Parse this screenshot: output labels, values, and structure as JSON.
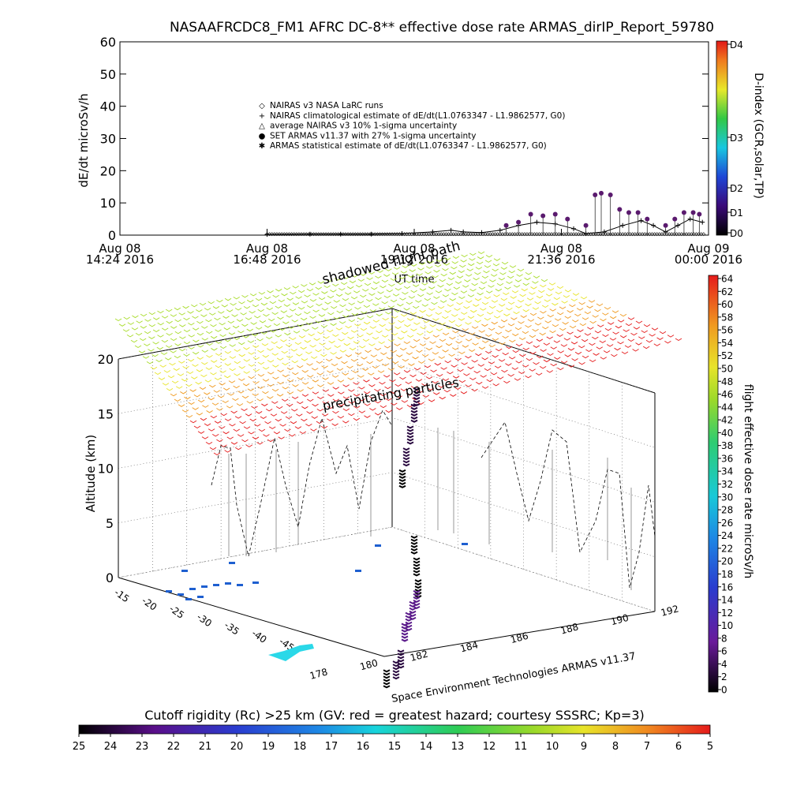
{
  "chart_data": [
    {
      "type": "line",
      "title": "NASAAFRCDC8_FM1 AFRC DC-8** effective dose rate ARMAS_dirIP_Report_59780",
      "ylabel": "dE/dt microSv/h",
      "xlabel": "UT time",
      "ylim": [
        0,
        60
      ],
      "yticks": [
        "0",
        "10",
        "20",
        "30",
        "40",
        "50",
        "60"
      ],
      "xticks": [
        {
          "date": "Aug 08",
          "time": "14:24 2016"
        },
        {
          "date": "Aug 08",
          "time": "16:48 2016"
        },
        {
          "date": "Aug 08",
          "time": "19:12 2016"
        },
        {
          "date": "Aug 08",
          "time": "21:36 2016"
        },
        {
          "date": "Aug 09",
          "time": "00:00 2016"
        }
      ],
      "legend": [
        {
          "symbol": "◇",
          "label": "NAIRAS v3 NASA LaRC runs"
        },
        {
          "symbol": "+",
          "label": "NAIRAS climatological estimate of dE/dt(L1.0763347 - L1.9862577, G0)"
        },
        {
          "symbol": "△",
          "label": "average NAIRAS v3 10% 1-sigma uncertainty"
        },
        {
          "symbol": "●",
          "label": "SET ARMAS v11.37 with 27% 1-sigma uncertainty"
        },
        {
          "symbol": "✱",
          "label": "ARMAS statistical estimate of dE/dt(L1.0763347 - L1.9862577, G0)"
        }
      ],
      "legend_position": "center",
      "series": [
        {
          "name": "SET ARMAS v11.37 with 27% 1-sigma uncertainty",
          "color": "#5a1a6e",
          "x_hours": [
            20.7,
            20.9,
            21.1,
            21.3,
            21.5,
            21.7,
            22.0,
            22.15,
            22.25,
            22.4,
            22.55,
            22.7,
            22.85,
            23.0,
            23.3,
            23.45,
            23.6,
            23.75,
            23.85
          ],
          "values": [
            3,
            4,
            6.5,
            6,
            6.5,
            5,
            3,
            12.5,
            13,
            12.5,
            8,
            7,
            7,
            5,
            3,
            5,
            7,
            7,
            6.5
          ]
        },
        {
          "name": "NAIRAS climatological estimate of dE/dt(L1.0763347 - L1.9862577, G0)",
          "color": "#000000",
          "x_hours": [
            16.8,
            17.5,
            18.0,
            18.5,
            19.0,
            19.5,
            19.8,
            20.0,
            20.3,
            20.6,
            20.9,
            21.2,
            21.5,
            21.8,
            22.0,
            22.3,
            22.6,
            22.9,
            23.1,
            23.3,
            23.5,
            23.7,
            23.9
          ],
          "values": [
            0.2,
            0.3,
            0.3,
            0.3,
            0.5,
            1,
            1.5,
            1,
            0.8,
            1.5,
            3,
            4,
            3.5,
            2,
            0.5,
            1,
            3,
            4.5,
            3,
            1,
            3,
            5,
            4
          ]
        }
      ],
      "colorbar": {
        "label": "D-index (GCR,solar,TP)",
        "ticks": [
          "D0",
          "D1",
          "D2",
          "D3",
          "D4"
        ]
      }
    },
    {
      "type": "scatter",
      "subtitle": "UT time",
      "zlabel": "Altitude (km)",
      "zlim": [
        0,
        20
      ],
      "zticks": [
        "0",
        "5",
        "10",
        "15",
        "20"
      ],
      "lat_ticks": [
        "-15",
        "-20",
        "-25",
        "-30",
        "-35",
        "-40",
        "-45"
      ],
      "lon_ticks": [
        "178",
        "180",
        "182",
        "184",
        "186",
        "188",
        "190",
        "192"
      ],
      "annotations": [
        "shadowed flight path",
        "precipitating particles"
      ],
      "credit": "Space Environment Technologies ARMAS v11.37",
      "colorbar": {
        "label": "flight effective dose rate microSv/h",
        "range": [
          0,
          64
        ],
        "ticks": [
          "0",
          "2",
          "4",
          "6",
          "8",
          "10",
          "12",
          "14",
          "16",
          "18",
          "20",
          "22",
          "24",
          "26",
          "28",
          "30",
          "32",
          "34",
          "36",
          "38",
          "40",
          "42",
          "44",
          "46",
          "48",
          "50",
          "52",
          "54",
          "56",
          "58",
          "60",
          "62",
          "64"
        ]
      },
      "flight_path": {
        "altitude_km": [
          19.5,
          18,
          16,
          14,
          12,
          11,
          9,
          7,
          6,
          5,
          4,
          3,
          2,
          1,
          0.2
        ],
        "dose_rate": [
          4,
          4,
          3,
          3,
          2,
          2,
          1,
          1,
          5,
          6,
          6,
          5,
          4,
          3,
          2
        ]
      }
    },
    {
      "type": "heatmap",
      "title": "Cutoff rigidity (Rc) >25 km (GV: red = greatest hazard; courtesy SSSRC; Kp=3)",
      "ticks": [
        "25",
        "24",
        "23",
        "22",
        "21",
        "20",
        "19",
        "18",
        "17",
        "16",
        "15",
        "14",
        "13",
        "12",
        "11",
        "10",
        "9",
        "8",
        "7",
        "6",
        "5"
      ],
      "range": [
        25,
        5
      ]
    }
  ]
}
